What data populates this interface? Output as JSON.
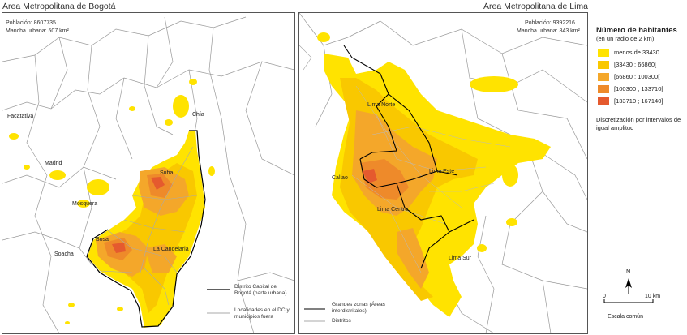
{
  "colors": {
    "c1": "#ffe300",
    "c2": "#f9c800",
    "c3": "#f4a72a",
    "c4": "#ee8a2a",
    "c5": "#e55a2e",
    "border": "#999999",
    "districts": "#aaaaaa"
  },
  "bogota": {
    "title": "Área Metropolitana de Bogotá",
    "population": "Población: 8607735",
    "mancha": "Mancha urbana: 507 km²",
    "places": {
      "facatativa": "Facatativá",
      "madrid": "Madrid",
      "mosquera": "Mosquera",
      "soacha": "Soacha",
      "chia": "Chía",
      "suba": "Suba",
      "bosa": "Bosa",
      "candelaria": "La Candelaria"
    },
    "legend": {
      "dc": "Distrito Capital de Bogotá (parte urbana)",
      "localidades": "Localidades en el DC y municipios fuera"
    }
  },
  "lima": {
    "title": "Área Metropolitana de Lima",
    "population": "Población: 9392216",
    "mancha": "Mancha urbana: 843 km²",
    "places": {
      "norte": "Lima Norte",
      "callao": "Callao",
      "este": "Lima Este",
      "centro": "Lima Centro",
      "sur": "Lima Sur"
    },
    "legend": {
      "zonas": "Grandes zonas (Áreas interdistritales)",
      "distritos": "Distritos"
    }
  },
  "legend": {
    "title": "Número de habitantes",
    "subtitle": "(en un radio de 2 km)",
    "classes": [
      {
        "label": "menos de 33430",
        "color": "#ffe300"
      },
      {
        "label": "[33430 ; 66860[",
        "color": "#f9c800"
      },
      {
        "label": "[66860 ; 100300[",
        "color": "#f4a72a"
      },
      {
        "label": "[100300 ; 133710[",
        "color": "#ee8a2a"
      },
      {
        "label": "[133710 ; 167140]",
        "color": "#e55a2e"
      }
    ],
    "note": "Discretización por intervalos de igual amplitud"
  },
  "scale": {
    "north": "N",
    "zero": "0",
    "distance": "10 km",
    "caption": "Escala común"
  }
}
